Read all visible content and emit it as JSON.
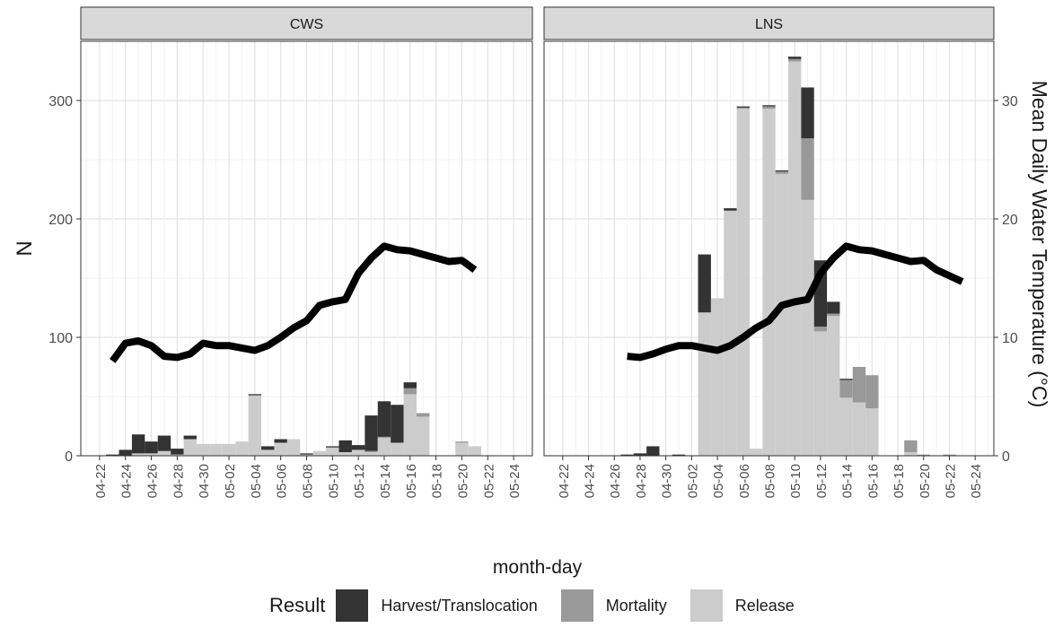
{
  "chart_data": {
    "type": "bar",
    "xlabel": "month-day",
    "ylabel": "N",
    "y2label": "Mean Daily Water Temperature (°C)",
    "ylim": [
      0,
      350
    ],
    "y2lim": [
      0,
      35
    ],
    "yticks": [
      "0",
      "100",
      "200",
      "300"
    ],
    "y2ticks": [
      "0",
      "10",
      "20",
      "30"
    ],
    "xticks": [
      "04-22",
      "04-24",
      "04-26",
      "04-28",
      "04-30",
      "05-02",
      "05-04",
      "05-06",
      "05-08",
      "05-10",
      "05-12",
      "05-14",
      "05-16",
      "05-18",
      "05-20",
      "05-22",
      "05-24"
    ],
    "grid": true,
    "stacked": true,
    "colors": {
      "Harvest/Translocation": "#333333",
      "Mortality": "#999999",
      "Release": "#cccccc",
      "temperature": "#000000",
      "strip": "#d9d9d9"
    },
    "legend": {
      "title": "Result",
      "position": "bottom",
      "entries": [
        "Harvest/Translocation",
        "Mortality",
        "Release"
      ]
    },
    "panels": [
      {
        "title": "CWS",
        "bars": [
          {
            "day": "04-23",
            "harvest": 1,
            "mortality": 0,
            "release": 0
          },
          {
            "day": "04-24",
            "harvest": 5,
            "mortality": 0,
            "release": 0
          },
          {
            "day": "04-25",
            "harvest": 16,
            "mortality": 0,
            "release": 2
          },
          {
            "day": "04-26",
            "harvest": 10,
            "mortality": 0,
            "release": 2
          },
          {
            "day": "04-27",
            "harvest": 13,
            "mortality": 0,
            "release": 4
          },
          {
            "day": "04-28",
            "harvest": 5,
            "mortality": 0,
            "release": 1
          },
          {
            "day": "04-29",
            "harvest": 3,
            "mortality": 0,
            "release": 14
          },
          {
            "day": "04-30",
            "harvest": 0,
            "mortality": 0,
            "release": 10
          },
          {
            "day": "05-01",
            "harvest": 0,
            "mortality": 0,
            "release": 10
          },
          {
            "day": "05-02",
            "harvest": 0,
            "mortality": 0,
            "release": 10
          },
          {
            "day": "05-03",
            "harvest": 0,
            "mortality": 0,
            "release": 12
          },
          {
            "day": "05-04",
            "harvest": 1,
            "mortality": 0,
            "release": 51
          },
          {
            "day": "05-05",
            "harvest": 3,
            "mortality": 0,
            "release": 5
          },
          {
            "day": "05-06",
            "harvest": 3,
            "mortality": 0,
            "release": 11
          },
          {
            "day": "05-07",
            "harvest": 0,
            "mortality": 0,
            "release": 14
          },
          {
            "day": "05-08",
            "harvest": 1,
            "mortality": 0,
            "release": 1
          },
          {
            "day": "05-09",
            "harvest": 0,
            "mortality": 0,
            "release": 4
          },
          {
            "day": "05-10",
            "harvest": 1,
            "mortality": 0,
            "release": 7
          },
          {
            "day": "05-11",
            "harvest": 10,
            "mortality": 0,
            "release": 3
          },
          {
            "day": "05-12",
            "harvest": 4,
            "mortality": 0,
            "release": 5
          },
          {
            "day": "05-13",
            "harvest": 30,
            "mortality": 1,
            "release": 3
          },
          {
            "day": "05-14",
            "harvest": 30,
            "mortality": 1,
            "release": 15
          },
          {
            "day": "05-15",
            "harvest": 32,
            "mortality": 0,
            "release": 11
          },
          {
            "day": "05-16",
            "harvest": 5,
            "mortality": 5,
            "release": 52
          },
          {
            "day": "05-17",
            "harvest": 0,
            "mortality": 3,
            "release": 33
          },
          {
            "day": "05-18",
            "harvest": 0,
            "mortality": 0,
            "release": 0
          },
          {
            "day": "05-19",
            "harvest": 0,
            "mortality": 0,
            "release": 0
          },
          {
            "day": "05-20",
            "harvest": 0,
            "mortality": 1,
            "release": 11
          },
          {
            "day": "05-21",
            "harvest": 0,
            "mortality": 0,
            "release": 8
          }
        ],
        "temperature": [
          {
            "day": "04-23",
            "temp": 8.0
          },
          {
            "day": "04-24",
            "temp": 9.5
          },
          {
            "day": "04-25",
            "temp": 9.7
          },
          {
            "day": "04-26",
            "temp": 9.3
          },
          {
            "day": "04-27",
            "temp": 8.4
          },
          {
            "day": "04-28",
            "temp": 8.3
          },
          {
            "day": "04-29",
            "temp": 8.6
          },
          {
            "day": "04-30",
            "temp": 9.5
          },
          {
            "day": "05-01",
            "temp": 9.3
          },
          {
            "day": "05-02",
            "temp": 9.3
          },
          {
            "day": "05-03",
            "temp": 9.1
          },
          {
            "day": "05-04",
            "temp": 8.9
          },
          {
            "day": "05-05",
            "temp": 9.3
          },
          {
            "day": "05-06",
            "temp": 10.0
          },
          {
            "day": "05-07",
            "temp": 10.8
          },
          {
            "day": "05-08",
            "temp": 11.4
          },
          {
            "day": "05-09",
            "temp": 12.7
          },
          {
            "day": "05-10",
            "temp": 13.0
          },
          {
            "day": "05-11",
            "temp": 13.2
          },
          {
            "day": "05-12",
            "temp": 15.4
          },
          {
            "day": "05-13",
            "temp": 16.7
          },
          {
            "day": "05-14",
            "temp": 17.7
          },
          {
            "day": "05-15",
            "temp": 17.4
          },
          {
            "day": "05-16",
            "temp": 17.3
          },
          {
            "day": "05-17",
            "temp": 17.0
          },
          {
            "day": "05-18",
            "temp": 16.7
          },
          {
            "day": "05-19",
            "temp": 16.4
          },
          {
            "day": "05-20",
            "temp": 16.5
          },
          {
            "day": "05-21",
            "temp": 15.7
          }
        ]
      },
      {
        "title": "LNS",
        "bars": [
          {
            "day": "04-27",
            "harvest": 1,
            "mortality": 0,
            "release": 0
          },
          {
            "day": "04-28",
            "harvest": 2,
            "mortality": 0,
            "release": 0
          },
          {
            "day": "04-29",
            "harvest": 8,
            "mortality": 0,
            "release": 0
          },
          {
            "day": "05-01",
            "harvest": 1,
            "mortality": 0,
            "release": 0
          },
          {
            "day": "05-03",
            "harvest": 49,
            "mortality": 0,
            "release": 121
          },
          {
            "day": "05-04",
            "harvest": 0,
            "mortality": 0,
            "release": 133
          },
          {
            "day": "05-05",
            "harvest": 2,
            "mortality": 0,
            "release": 207
          },
          {
            "day": "05-06",
            "harvest": 1,
            "mortality": 1,
            "release": 293
          },
          {
            "day": "05-07",
            "harvest": 0,
            "mortality": 0,
            "release": 6
          },
          {
            "day": "05-08",
            "harvest": 1,
            "mortality": 2,
            "release": 293
          },
          {
            "day": "05-09",
            "harvest": 1,
            "mortality": 2,
            "release": 238
          },
          {
            "day": "05-10",
            "harvest": 2,
            "mortality": 2,
            "release": 333
          },
          {
            "day": "05-11",
            "harvest": 43,
            "mortality": 52,
            "release": 216
          },
          {
            "day": "05-12",
            "harvest": 56,
            "mortality": 4,
            "release": 105
          },
          {
            "day": "05-13",
            "harvest": 10,
            "mortality": 2,
            "release": 118
          },
          {
            "day": "05-14",
            "harvest": 1,
            "mortality": 15,
            "release": 49
          },
          {
            "day": "05-15",
            "harvest": 0,
            "mortality": 30,
            "release": 45
          },
          {
            "day": "05-16",
            "harvest": 0,
            "mortality": 28,
            "release": 40
          },
          {
            "day": "05-19",
            "harvest": 0,
            "mortality": 10,
            "release": 3
          },
          {
            "day": "05-20",
            "harvest": 0,
            "mortality": 1,
            "release": 0
          },
          {
            "day": "05-22",
            "harvest": 0,
            "mortality": 1,
            "release": 0
          }
        ],
        "temperature": [
          {
            "day": "04-27",
            "temp": 8.4
          },
          {
            "day": "04-28",
            "temp": 8.3
          },
          {
            "day": "04-29",
            "temp": 8.6
          },
          {
            "day": "04-30",
            "temp": 9.0
          },
          {
            "day": "05-01",
            "temp": 9.3
          },
          {
            "day": "05-02",
            "temp": 9.3
          },
          {
            "day": "05-03",
            "temp": 9.1
          },
          {
            "day": "05-04",
            "temp": 8.9
          },
          {
            "day": "05-05",
            "temp": 9.3
          },
          {
            "day": "05-06",
            "temp": 10.0
          },
          {
            "day": "05-07",
            "temp": 10.8
          },
          {
            "day": "05-08",
            "temp": 11.4
          },
          {
            "day": "05-09",
            "temp": 12.7
          },
          {
            "day": "05-10",
            "temp": 13.0
          },
          {
            "day": "05-11",
            "temp": 13.2
          },
          {
            "day": "05-12",
            "temp": 15.4
          },
          {
            "day": "05-13",
            "temp": 16.7
          },
          {
            "day": "05-14",
            "temp": 17.7
          },
          {
            "day": "05-15",
            "temp": 17.4
          },
          {
            "day": "05-16",
            "temp": 17.3
          },
          {
            "day": "05-17",
            "temp": 17.0
          },
          {
            "day": "05-18",
            "temp": 16.7
          },
          {
            "day": "05-19",
            "temp": 16.4
          },
          {
            "day": "05-20",
            "temp": 16.5
          },
          {
            "day": "05-21",
            "temp": 15.7
          },
          {
            "day": "05-22",
            "temp": 15.2
          },
          {
            "day": "05-23",
            "temp": 14.7
          }
        ]
      }
    ]
  }
}
